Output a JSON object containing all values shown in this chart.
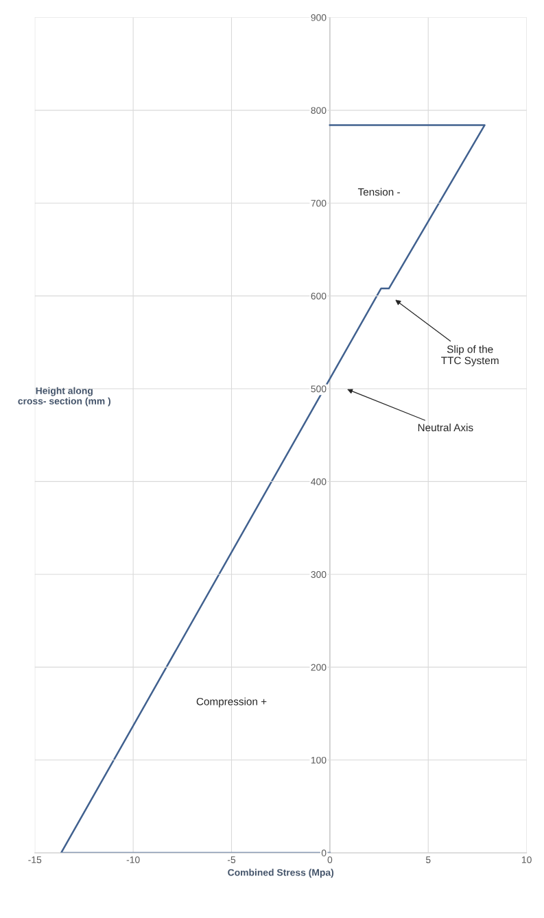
{
  "chart_data": {
    "type": "line",
    "xlabel": "Combined Stress (Mpa)",
    "ylabel": "Height along\ncross- section (mm )",
    "series": [
      {
        "color": "#41618f",
        "x": [
          0,
          -13.66,
          2.6,
          3.0,
          7.87,
          0
        ],
        "values": [
          0,
          0,
          608,
          608,
          784,
          784
        ]
      }
    ],
    "xlim": [
      -15,
      10
    ],
    "xticks": [
      -15,
      -10,
      -5,
      0,
      5,
      10
    ],
    "ylim": [
      0,
      900
    ],
    "yticks": [
      0,
      100,
      200,
      300,
      400,
      500,
      600,
      700,
      800,
      900
    ],
    "grid": true,
    "marker": "none",
    "line_style": "solid",
    "annotations": [
      "Tension -",
      "Compression +",
      "Slip of the\nTTC System",
      "Neutral Axis"
    ]
  }
}
